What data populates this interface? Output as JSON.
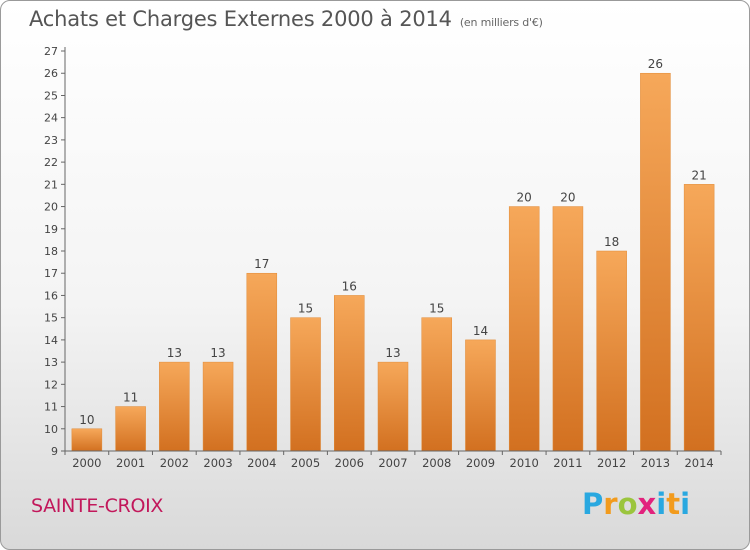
{
  "header": {
    "title": "Achats et Charges Externes 2000 à 2014",
    "subtitle": "(en milliers d'€)"
  },
  "footer": {
    "commune": "SAINTE-CROIX",
    "brand": {
      "p": "P",
      "r": "r",
      "o": "o",
      "x": "x",
      "i": "i",
      "t": "t",
      "i2": "i"
    }
  },
  "colors": {
    "bar_light": "#f6a85a",
    "bar_dark": "#d27020",
    "axis": "#666666",
    "grid": "#dddddd",
    "commune": "#c2185b"
  },
  "chart_data": {
    "type": "bar",
    "title": "Achats et Charges Externes 2000 à 2014",
    "subtitle": "(en milliers d'€)",
    "categories": [
      "2000",
      "2001",
      "2002",
      "2003",
      "2004",
      "2005",
      "2006",
      "2007",
      "2008",
      "2009",
      "2010",
      "2011",
      "2012",
      "2013",
      "2014"
    ],
    "values": [
      10,
      11,
      13,
      13,
      17,
      15,
      16,
      13,
      15,
      14,
      20,
      20,
      18,
      26,
      21
    ],
    "ylim": [
      9,
      27
    ],
    "yticks": [
      9,
      10,
      11,
      12,
      13,
      14,
      15,
      16,
      17,
      18,
      19,
      20,
      21,
      22,
      23,
      24,
      25,
      26,
      27
    ],
    "data_labels": true,
    "grid": false,
    "legend": "none"
  }
}
